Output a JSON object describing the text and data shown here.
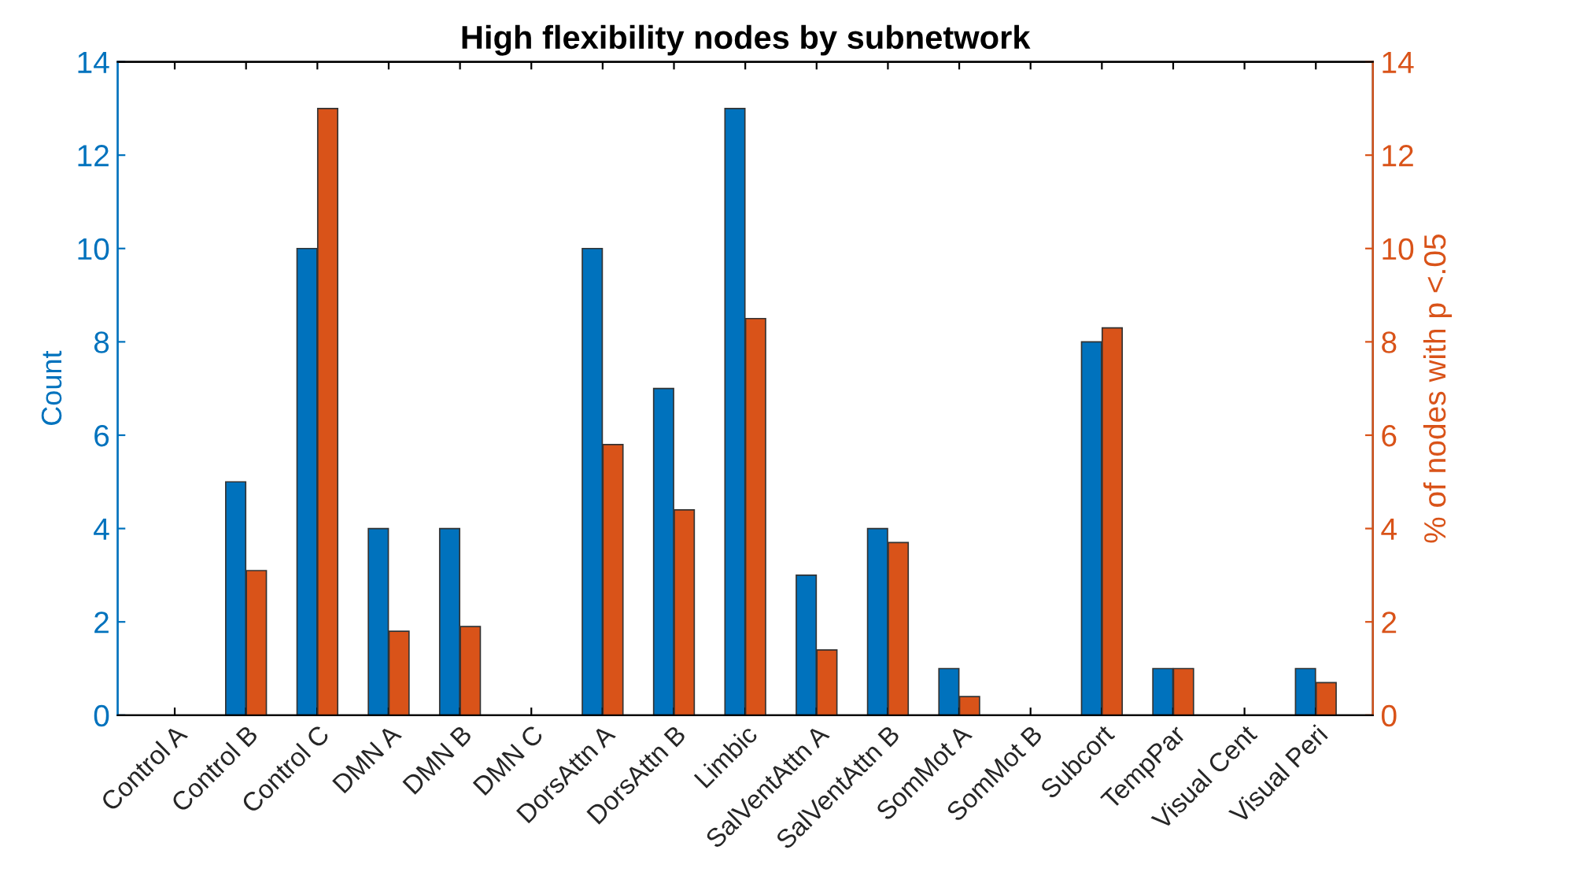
{
  "chart_data": {
    "type": "bar",
    "title": "High flexibility nodes by subnetwork",
    "ylabel": "Count",
    "y2label": "% of nodes with p <.05",
    "categories": [
      "Control A",
      "Control B",
      "Control C",
      "DMN A",
      "DMN B",
      "DMN C",
      "DorsAttn A",
      "DorsAttn B",
      "Limbic",
      "SalVentAttn A",
      "SalVentAttn B",
      "SomMot A",
      "SomMot B",
      "Subcort",
      "TempPar",
      "Visual Cent",
      "Visual Peri"
    ],
    "series": [
      {
        "color": "#0072bd",
        "values": [
          0,
          5,
          10,
          4,
          4,
          0,
          10,
          7,
          13,
          3,
          4,
          1,
          0,
          8,
          1,
          0,
          1
        ]
      },
      {
        "color": "#d95319",
        "axis": "y2",
        "values": [
          0,
          3.1,
          13,
          1.8,
          1.9,
          0,
          5.8,
          4.4,
          8.5,
          1.4,
          3.7,
          0.4,
          0,
          8.3,
          1.0,
          0,
          0.7
        ]
      }
    ],
    "ylim": [
      0,
      14
    ],
    "yticks": [
      0,
      2,
      4,
      6,
      8,
      10,
      12,
      14
    ],
    "y2lim": [
      0,
      14
    ],
    "y2ticks": [
      0,
      2,
      4,
      6,
      8,
      10,
      12,
      14
    ],
    "grid": false,
    "legend": false
  }
}
